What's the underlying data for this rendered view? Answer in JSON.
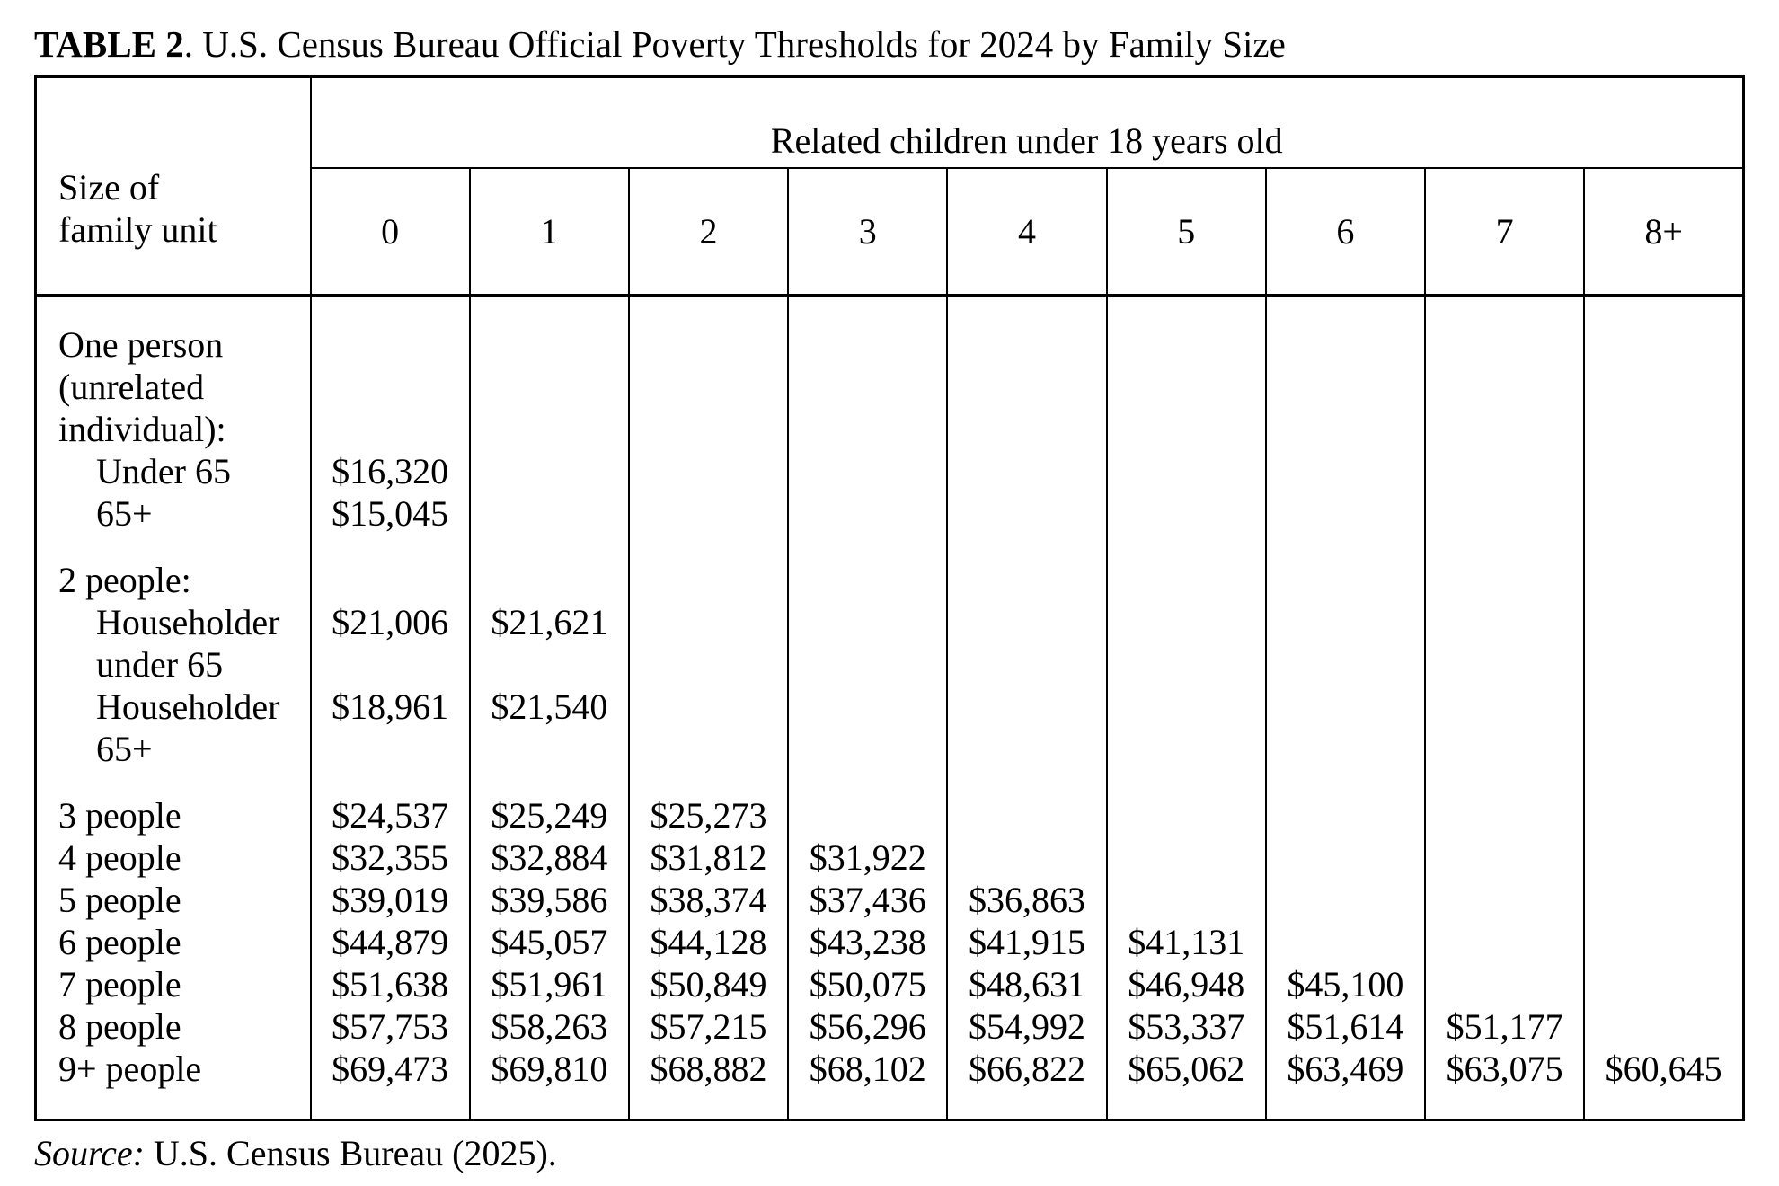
{
  "page": {
    "title_bold": "TABLE 2",
    "title_rest": ". U.S. Census Bureau Official Poverty Thresholds for 2024 by Family Size",
    "source_prefix": "Source:",
    "source_rest": " U.S. Census Bureau (2025)."
  },
  "table": {
    "corner_header_line1": "Size of",
    "corner_header_line2": "family unit",
    "group_header": "Related children under 18 years old",
    "column_headers": [
      "0",
      "1",
      "2",
      "3",
      "4",
      "5",
      "6",
      "7",
      "8+"
    ],
    "body_lines": [
      {
        "label": "One person",
        "indent": false,
        "gap": false,
        "values": [
          "",
          "",
          "",
          "",
          "",
          "",
          "",
          "",
          ""
        ]
      },
      {
        "label": "(unrelated",
        "indent": false,
        "gap": false,
        "values": [
          "",
          "",
          "",
          "",
          "",
          "",
          "",
          "",
          ""
        ]
      },
      {
        "label": "individual):",
        "indent": false,
        "gap": false,
        "values": [
          "",
          "",
          "",
          "",
          "",
          "",
          "",
          "",
          ""
        ]
      },
      {
        "label": "Under 65",
        "indent": true,
        "gap": false,
        "values": [
          "$16,320",
          "",
          "",
          "",
          "",
          "",
          "",
          "",
          ""
        ]
      },
      {
        "label": "65+",
        "indent": true,
        "gap": false,
        "values": [
          "$15,045",
          "",
          "",
          "",
          "",
          "",
          "",
          "",
          ""
        ]
      },
      {
        "label": "2 people:",
        "indent": false,
        "gap": true,
        "values": [
          "",
          "",
          "",
          "",
          "",
          "",
          "",
          "",
          ""
        ]
      },
      {
        "label": "Householder",
        "indent": true,
        "gap": false,
        "values": [
          "$21,006",
          "$21,621",
          "",
          "",
          "",
          "",
          "",
          "",
          ""
        ]
      },
      {
        "label": "under 65",
        "indent": true,
        "gap": false,
        "values": [
          "",
          "",
          "",
          "",
          "",
          "",
          "",
          "",
          ""
        ]
      },
      {
        "label": "Householder",
        "indent": true,
        "gap": false,
        "values": [
          "$18,961",
          "$21,540",
          "",
          "",
          "",
          "",
          "",
          "",
          ""
        ]
      },
      {
        "label": "65+",
        "indent": true,
        "gap": false,
        "values": [
          "",
          "",
          "",
          "",
          "",
          "",
          "",
          "",
          ""
        ]
      },
      {
        "label": "3 people",
        "indent": false,
        "gap": true,
        "values": [
          "$24,537",
          "$25,249",
          "$25,273",
          "",
          "",
          "",
          "",
          "",
          ""
        ]
      },
      {
        "label": "4 people",
        "indent": false,
        "gap": false,
        "values": [
          "$32,355",
          "$32,884",
          "$31,812",
          "$31,922",
          "",
          "",
          "",
          "",
          ""
        ]
      },
      {
        "label": "5 people",
        "indent": false,
        "gap": false,
        "values": [
          "$39,019",
          "$39,586",
          "$38,374",
          "$37,436",
          "$36,863",
          "",
          "",
          "",
          ""
        ]
      },
      {
        "label": "6 people",
        "indent": false,
        "gap": false,
        "values": [
          "$44,879",
          "$45,057",
          "$44,128",
          "$43,238",
          "$41,915",
          "$41,131",
          "",
          "",
          ""
        ]
      },
      {
        "label": "7 people",
        "indent": false,
        "gap": false,
        "values": [
          "$51,638",
          "$51,961",
          "$50,849",
          "$50,075",
          "$48,631",
          "$46,948",
          "$45,100",
          "",
          ""
        ]
      },
      {
        "label": "8 people",
        "indent": false,
        "gap": false,
        "values": [
          "$57,753",
          "$58,263",
          "$57,215",
          "$56,296",
          "$54,992",
          "$53,337",
          "$51,614",
          "$51,177",
          ""
        ]
      },
      {
        "label": "9+ people",
        "indent": false,
        "gap": false,
        "values": [
          "$69,473",
          "$69,810",
          "$68,882",
          "$68,102",
          "$66,822",
          "$65,062",
          "$63,469",
          "$63,075",
          "$60,645"
        ]
      }
    ]
  },
  "chart_data": {
    "type": "table",
    "title": "TABLE 2. U.S. Census Bureau Official Poverty Thresholds for 2024 by Family Size",
    "column_group_label": "Related children under 18 years old",
    "row_group_label": "Size of family unit",
    "columns": [
      "0",
      "1",
      "2",
      "3",
      "4",
      "5",
      "6",
      "7",
      "8+"
    ],
    "rows": [
      {
        "label": "One person (unrelated individual): Under 65",
        "values": [
          16320
        ]
      },
      {
        "label": "One person (unrelated individual): 65+",
        "values": [
          15045
        ]
      },
      {
        "label": "2 people: Householder under 65",
        "values": [
          21006,
          21621
        ]
      },
      {
        "label": "2 people: Householder 65+",
        "values": [
          18961,
          21540
        ]
      },
      {
        "label": "3 people",
        "values": [
          24537,
          25249,
          25273
        ]
      },
      {
        "label": "4 people",
        "values": [
          32355,
          32884,
          31812,
          31922
        ]
      },
      {
        "label": "5 people",
        "values": [
          39019,
          39586,
          38374,
          37436,
          36863
        ]
      },
      {
        "label": "6 people",
        "values": [
          44879,
          45057,
          44128,
          43238,
          41915,
          41131
        ]
      },
      {
        "label": "7 people",
        "values": [
          51638,
          51961,
          50849,
          50075,
          48631,
          46948,
          45100
        ]
      },
      {
        "label": "8 people",
        "values": [
          57753,
          58263,
          57215,
          56296,
          54992,
          53337,
          51614,
          51177
        ]
      },
      {
        "label": "9+ people",
        "values": [
          69473,
          69810,
          68882,
          68102,
          66822,
          65062,
          63469,
          63075,
          60645
        ]
      }
    ],
    "source": "Source: U.S. Census Bureau (2025)."
  }
}
